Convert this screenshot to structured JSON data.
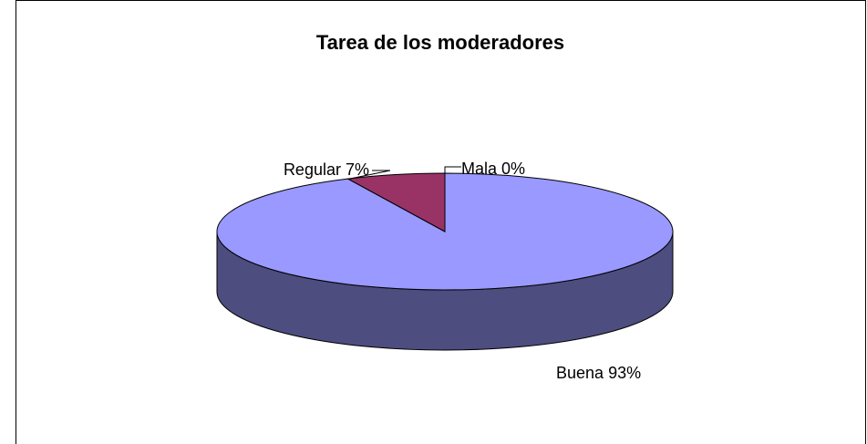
{
  "chart_data": {
    "type": "pie3d",
    "title": "Tarea de los moderadores",
    "categories": [
      "Buena",
      "Regular",
      "Mala"
    ],
    "values": [
      93,
      7,
      0
    ],
    "value_labels": [
      "93%",
      "7%",
      "0%"
    ],
    "colors": [
      "#9999ff",
      "#993366",
      "#ffffcc"
    ],
    "side_colors": [
      "#4d4d80",
      "#4d1a33",
      "#808066"
    ]
  }
}
